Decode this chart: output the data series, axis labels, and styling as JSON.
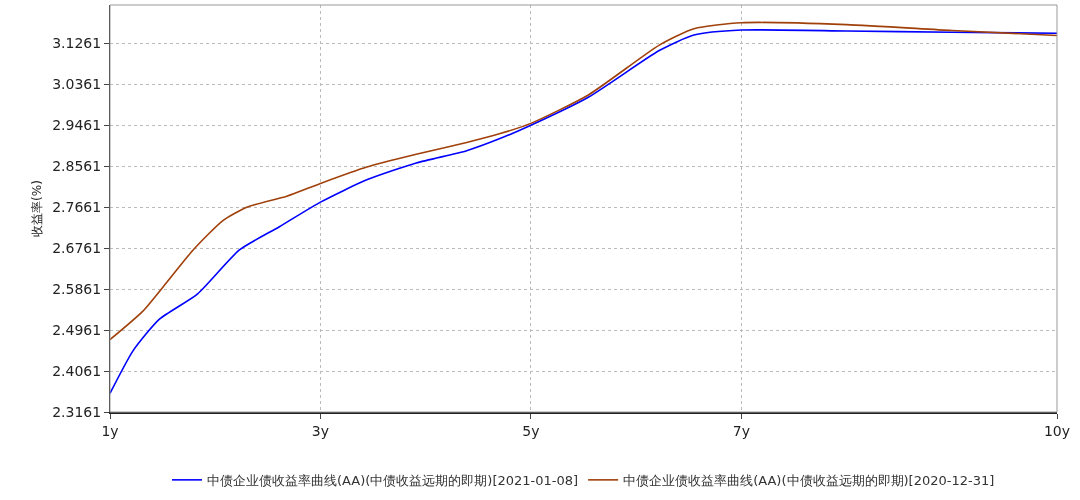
{
  "chart_data": {
    "type": "line",
    "ylabel": "收益率(%)",
    "xlim": [
      1,
      10
    ],
    "xticks": [
      {
        "value": 1,
        "label": "1y"
      },
      {
        "value": 3,
        "label": "3y"
      },
      {
        "value": 5,
        "label": "5y"
      },
      {
        "value": 7,
        "label": "7y"
      },
      {
        "value": 10,
        "label": "10y"
      }
    ],
    "ylim": [
      2.3161,
      3.21
    ],
    "yticks": [
      2.3161,
      2.4061,
      2.4961,
      2.5861,
      2.6761,
      2.7661,
      2.8561,
      2.9461,
      3.0361,
      3.1261
    ],
    "grid": true,
    "legend": "bottom",
    "marker": "none",
    "line_style": "solid",
    "series": [
      {
        "name": "中债企业债收益率曲线(AA)(中债收益远期的即期)[2021-01-08]",
        "color": "#0000ff",
        "x": [
          1,
          1.22,
          1.47,
          1.83,
          2.23,
          2.61,
          3,
          3.44,
          3.91,
          4.39,
          4.7,
          5,
          5.55,
          6.22,
          6.55,
          7,
          8,
          9,
          10
        ],
        "values": [
          2.357,
          2.451,
          2.52,
          2.575,
          2.672,
          2.723,
          2.777,
          2.826,
          2.863,
          2.89,
          2.916,
          2.946,
          3.008,
          3.11,
          3.144,
          3.155,
          3.153,
          3.15,
          3.148
        ]
      },
      {
        "name": "中债企业债收益率曲线(AA)(中债收益远期的即期)[2020-12-31]",
        "color": "#a0400a",
        "x": [
          1,
          1.31,
          1.54,
          1.79,
          2.07,
          2.3,
          2.68,
          3,
          3.44,
          3.91,
          4.39,
          4.7,
          5,
          5.55,
          6.22,
          6.55,
          7,
          8,
          9,
          10
        ],
        "values": [
          2.475,
          2.537,
          2.601,
          2.672,
          2.736,
          2.766,
          2.79,
          2.818,
          2.854,
          2.882,
          2.908,
          2.927,
          2.95,
          3.013,
          3.122,
          3.158,
          3.171,
          3.167,
          3.154,
          3.143
        ]
      }
    ]
  }
}
